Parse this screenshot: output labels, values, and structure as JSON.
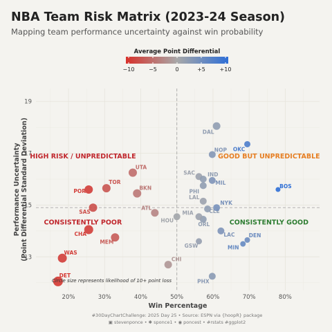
{
  "header": {
    "title": "NBA Team Risk Matrix (2023-24 Season)",
    "subtitle": "Mapping team performance uncertainty against win probability"
  },
  "legend": {
    "title": "Average Point Differential",
    "ticks": [
      "−10",
      "−5",
      "0",
      "+5",
      "+10"
    ],
    "low_color": "#d7312b",
    "mid_color": "#a8a8a8",
    "high_color": "#2f6fd6"
  },
  "note": "Circle size represents likelihood of 10+ point loss",
  "caption": {
    "line1": "#30DayChartChallenge: 2025 Day 25 • Source: ESPN via {hoopR} package",
    "line2": "▣ stevenponce • ✱ sponce1 • ◉ poncest • #rstats #ggplot2"
  },
  "chart_data": {
    "type": "scatter",
    "xlabel": "Win Percentage",
    "ylabel": "Performance Uncertainty",
    "ylabel2": "(Point Differential Standard Deviation)",
    "xlim": [
      0.11,
      0.895
    ],
    "ylim": [
      11.7,
      19.5
    ],
    "x_ticks": [
      0.2,
      0.3,
      0.4,
      0.5,
      0.6,
      0.7,
      0.8
    ],
    "x_tick_labels": [
      "20%",
      "30%",
      "40%",
      "50%",
      "60%",
      "70%",
      "80%"
    ],
    "y_ticks": [
      13,
      15,
      17,
      19
    ],
    "y_tick_labels": [
      "13",
      "15",
      "17",
      "19"
    ],
    "ref_x": 0.5,
    "ref_y": 14.9,
    "quadrants": [
      {
        "label": "HIGH RISK / UNPREDICTABLE",
        "x": 0.24,
        "y": 16.8,
        "color": "#c0272d"
      },
      {
        "label": "GOOD BUT UNPREDICTABLE",
        "x": 0.755,
        "y": 16.8,
        "color": "#e67e22"
      },
      {
        "label": "CONSISTENTLY POOR",
        "x": 0.24,
        "y": 14.25,
        "color": "#c0272d"
      },
      {
        "label": "CONSISTENTLY GOOD",
        "x": 0.755,
        "y": 14.25,
        "color": "#2e7d32"
      }
    ],
    "points": [
      {
        "team": "DET",
        "x": 0.171,
        "y": 12.05,
        "diff": -9.5,
        "size": 7
      },
      {
        "team": "WAS",
        "x": 0.183,
        "y": 12.95,
        "diff": -9.0,
        "size": 6.5
      },
      {
        "team": "CHA",
        "x": 0.256,
        "y": 14.05,
        "diff": -9.0,
        "size": 6.5
      },
      {
        "team": "POR",
        "x": 0.256,
        "y": 15.6,
        "diff": -9.0,
        "size": 6
      },
      {
        "team": "SAS",
        "x": 0.268,
        "y": 14.9,
        "diff": -7.5,
        "size": 6
      },
      {
        "team": "TOR",
        "x": 0.305,
        "y": 15.65,
        "diff": -7.0,
        "size": 6
      },
      {
        "team": "MEM",
        "x": 0.329,
        "y": 13.75,
        "diff": -6.5,
        "size": 6
      },
      {
        "team": "UTA",
        "x": 0.378,
        "y": 16.25,
        "diff": -5.0,
        "size": 6
      },
      {
        "team": "BKN",
        "x": 0.39,
        "y": 15.45,
        "diff": -4.0,
        "size": 6
      },
      {
        "team": "ATL",
        "x": 0.439,
        "y": 14.7,
        "diff": -3.0,
        "size": 5.5
      },
      {
        "team": "CHI",
        "x": 0.476,
        "y": 12.7,
        "diff": -1.5,
        "size": 5.5
      },
      {
        "team": "HOU",
        "x": 0.5,
        "y": 14.55,
        "diff": 0.5,
        "size": 5
      },
      {
        "team": "GSW",
        "x": 0.561,
        "y": 13.6,
        "diff": 1.5,
        "size": 4.5
      },
      {
        "team": "SAC",
        "x": 0.561,
        "y": 16.1,
        "diff": 1.0,
        "size": 5
      },
      {
        "team": "ORL",
        "x": 0.573,
        "y": 14.45,
        "diff": 2.0,
        "size": 5
      },
      {
        "team": "LAL",
        "x": 0.573,
        "y": 15.15,
        "diff": 1.0,
        "size": 5
      },
      {
        "team": "MIA",
        "x": 0.561,
        "y": 14.55,
        "diff": 1.0,
        "size": 5
      },
      {
        "team": "IND",
        "x": 0.573,
        "y": 16.0,
        "diff": 2.0,
        "size": 5
      },
      {
        "team": "PHI",
        "x": 0.573,
        "y": 15.75,
        "diff": 2.0,
        "size": 5
      },
      {
        "team": "CLE",
        "x": 0.585,
        "y": 14.85,
        "diff": 2.0,
        "size": 5
      },
      {
        "team": "PHX",
        "x": 0.598,
        "y": 12.25,
        "diff": 2.5,
        "size": 5
      },
      {
        "team": "NOP",
        "x": 0.598,
        "y": 16.95,
        "diff": 3.0,
        "size": 5
      },
      {
        "team": "MIL",
        "x": 0.598,
        "y": 15.95,
        "diff": 3.5,
        "size": 5
      },
      {
        "team": "NYK",
        "x": 0.61,
        "y": 14.9,
        "diff": 4.0,
        "size": 5
      },
      {
        "team": "DAL",
        "x": 0.61,
        "y": 18.05,
        "diff": 2.0,
        "size": 5.5
      },
      {
        "team": "LAC",
        "x": 0.622,
        "y": 14.0,
        "diff": 3.5,
        "size": 5
      },
      {
        "team": "MIN",
        "x": 0.683,
        "y": 13.5,
        "diff": 5.5,
        "size": 4
      },
      {
        "team": "DEN",
        "x": 0.695,
        "y": 13.65,
        "diff": 5.0,
        "size": 4
      },
      {
        "team": "OKC",
        "x": 0.695,
        "y": 17.35,
        "diff": 7.5,
        "size": 4.5
      },
      {
        "team": "BOS",
        "x": 0.78,
        "y": 15.6,
        "diff": 11.5,
        "size": 3.5
      }
    ]
  }
}
